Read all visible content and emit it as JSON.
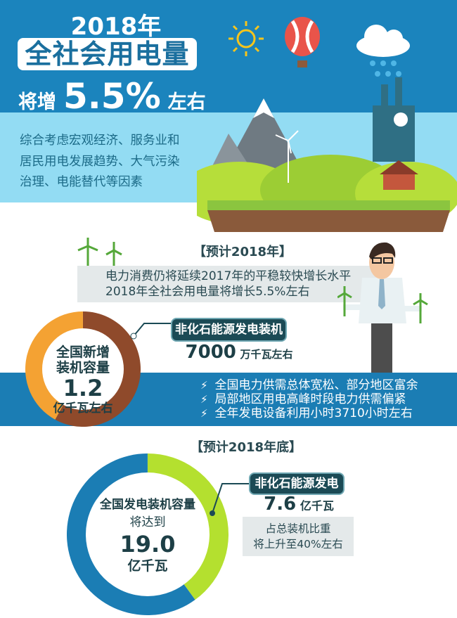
{
  "header": {
    "year": "2018年",
    "title": "全社会用电量",
    "prefix": "将增",
    "growth": "5.5%",
    "suffix": "左右"
  },
  "intro": {
    "lines": [
      "综合考虑宏观经济、服务业和",
      "居民用电发展趋势、大气污染",
      "治理、电能替代等因素"
    ]
  },
  "forecast_year": {
    "heading": "【预计2018年】",
    "lines": [
      "电力消费仍将延续2017年的平稳较快增长水平",
      "2018年全社会用电量将增长5.5%左右"
    ]
  },
  "new_capacity": {
    "center_lines": [
      "全国新增",
      "装机容量"
    ],
    "value": "1.2",
    "unit": "亿千瓦左右",
    "callout_label": "非化石能源发电装机",
    "callout_value": "7000",
    "callout_unit": "万千瓦左右",
    "fraction_non_fossil": 0.58,
    "colors": {
      "non_fossil": "#8f4a2b",
      "other": "#f4a233"
    }
  },
  "bullets": [
    "全国电力供需总体宽松、部分地区富余",
    "局部地区用电高峰时段电力供需偏紧",
    "全年发电设备利用小时3710小时左右"
  ],
  "forecast_year_end": {
    "heading": "【预计2018年底】",
    "center_title": "全国发电装机容量",
    "center_sub": "将达到",
    "value": "19.0",
    "unit": "亿千瓦",
    "callout_label": "非化石能源发电",
    "callout_value": "7.6",
    "callout_unit": "亿千瓦",
    "note_lines": [
      "占总装机比重",
      "将上升至40%左右"
    ],
    "fraction_non_fossil": 0.4,
    "colors": {
      "non_fossil": "#b4e02f",
      "other": "#1b7db4"
    }
  },
  "colors": {
    "header_blue": "#1b84bd",
    "sky": "#93dcf3",
    "dark_teal": "#1b4a55"
  }
}
